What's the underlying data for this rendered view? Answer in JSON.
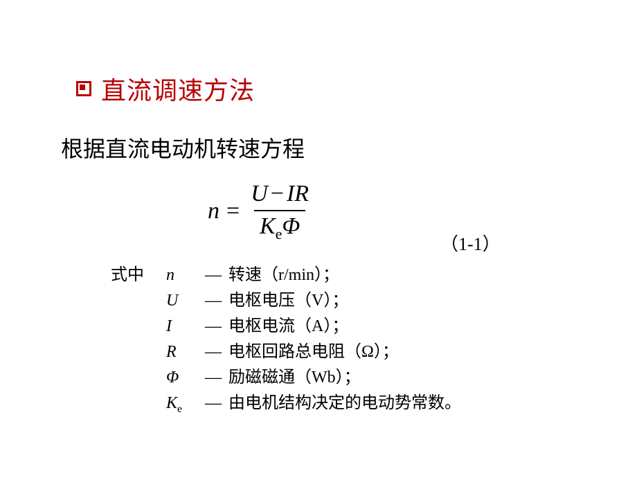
{
  "heading": {
    "bullet_color": "#b80000",
    "text": "直流调速方法",
    "text_color": "#b80000",
    "fontsize": 36
  },
  "intro": {
    "text": "根据直流电动机转速方程",
    "fontsize": 32
  },
  "equation": {
    "lhs": "n",
    "op": "=",
    "numerator_U": "U",
    "numerator_minus": "−",
    "numerator_IR": "IR",
    "denominator_K": "K",
    "denominator_sub": "e",
    "denominator_Phi": "Φ",
    "number": "（1-1）",
    "fontsize": 34
  },
  "def_header": "式中",
  "definitions": [
    {
      "symbol": "n",
      "sub": "",
      "dash": "—",
      "desc": " 转速（r/min）；"
    },
    {
      "symbol": "U",
      "sub": "",
      "dash": "—",
      "desc": " 电枢电压（V）；"
    },
    {
      "symbol": "I",
      "sub": "",
      "dash": "—",
      "desc": " 电枢电流（A）；"
    },
    {
      "symbol": "R",
      "sub": "",
      "dash": "—",
      "desc": " 电枢回路总电阻（Ω）；"
    },
    {
      "symbol": "Φ",
      "sub": "",
      "dash": "—",
      "desc": " 励磁磁通（Wb）；"
    },
    {
      "symbol": "K",
      "sub": "e",
      "dash": "—",
      "desc": " 由电机结构决定的电动势常数。"
    }
  ],
  "style": {
    "page_bg": "#ffffff",
    "text_color": "#000000",
    "def_fontsize": 24
  }
}
